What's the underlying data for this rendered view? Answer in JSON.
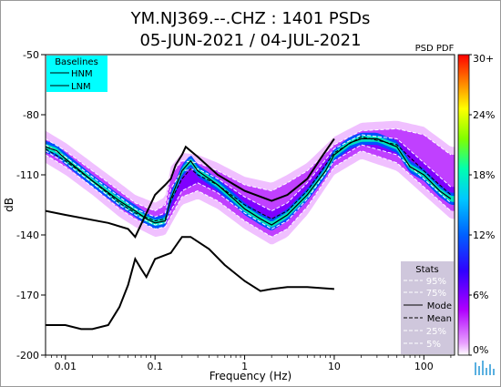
{
  "title": {
    "line1": "YM.NJ369.--.CHZ : 1401 PSDs",
    "line2": "05-JUN-2021 / 04-JUL-2021"
  },
  "chart_data": {
    "type": "heatmap",
    "xlabel": "Frequency (Hz)",
    "ylabel": "dB",
    "x_scale": "log",
    "xlim": [
      0.006,
      220
    ],
    "ylim": [
      -200,
      -50
    ],
    "x_ticks": [
      {
        "value": 0.01,
        "label": "0.01"
      },
      {
        "value": 0.1,
        "label": "0.1"
      },
      {
        "value": 1,
        "label": "1"
      },
      {
        "value": 10,
        "label": "10"
      },
      {
        "value": 100,
        "label": "100"
      }
    ],
    "y_ticks": [
      {
        "value": -50,
        "label": "-50"
      },
      {
        "value": -80,
        "label": "-80"
      },
      {
        "value": -110,
        "label": "-110"
      },
      {
        "value": -140,
        "label": "-140"
      },
      {
        "value": -170,
        "label": "-170"
      },
      {
        "value": -200,
        "label": "-200"
      }
    ],
    "colorbar": {
      "title": "PSD PDF",
      "range": [
        0,
        30
      ],
      "tick_labels": [
        "30+",
        "24%",
        "18%",
        "12%",
        "6%",
        "0%"
      ],
      "tick_values": [
        30,
        24,
        18,
        12,
        6,
        0
      ]
    },
    "baselines_legend": {
      "title": "Baselines",
      "entries": [
        "HNM",
        "LNM"
      ],
      "color": "#00ffff"
    },
    "stats_legend": {
      "title": "Stats",
      "entries": [
        "95%",
        "75%",
        "Mode",
        "Mean",
        "25%",
        "5%"
      ]
    },
    "series": [
      {
        "name": "HNM",
        "x": [
          0.006,
          0.01,
          0.03,
          0.05,
          0.06,
          0.1,
          0.13,
          0.15,
          0.17,
          0.2,
          0.22,
          0.3,
          0.5,
          1,
          2,
          3,
          5,
          7,
          10
        ],
        "y": [
          -128,
          -130,
          -134,
          -137,
          -141,
          -120,
          -115,
          -112,
          -105,
          -100,
          -96,
          -101,
          -110,
          -118,
          -123,
          -120,
          -112,
          -102,
          -92
        ]
      },
      {
        "name": "LNM",
        "x": [
          0.006,
          0.01,
          0.015,
          0.02,
          0.03,
          0.04,
          0.05,
          0.06,
          0.07,
          0.08,
          0.1,
          0.15,
          0.2,
          0.25,
          0.4,
          0.6,
          1,
          1.5,
          2,
          3,
          5,
          10
        ],
        "y": [
          -185,
          -185,
          -187,
          -187,
          -185,
          -176,
          -165,
          -152,
          -157,
          -161,
          -152,
          -149,
          -141,
          -141,
          -147,
          -155,
          -163,
          -168,
          -167,
          -166,
          -166,
          -167
        ]
      },
      {
        "name": "Mode",
        "x": [
          0.006,
          0.008,
          0.01,
          0.02,
          0.04,
          0.06,
          0.08,
          0.1,
          0.13,
          0.15,
          0.2,
          0.25,
          0.3,
          0.5,
          0.8,
          1,
          1.5,
          2,
          3,
          5,
          8,
          10,
          15,
          20,
          30,
          50,
          70,
          100,
          150,
          200
        ],
        "y": [
          -96,
          -98,
          -102,
          -113,
          -123,
          -128,
          -132,
          -134,
          -133,
          -122,
          -108,
          -103,
          -108,
          -115,
          -123,
          -127,
          -132,
          -135,
          -130,
          -120,
          -108,
          -100,
          -94,
          -92,
          -92,
          -96,
          -106,
          -110,
          -118,
          -122
        ]
      },
      {
        "name": "Mean",
        "x": [
          0.006,
          0.01,
          0.02,
          0.04,
          0.06,
          0.1,
          0.13,
          0.15,
          0.2,
          0.25,
          0.3,
          0.5,
          1,
          2,
          3,
          5,
          10,
          20,
          50,
          100,
          200
        ],
        "y": [
          -97,
          -103,
          -113,
          -124,
          -129,
          -133,
          -132,
          -123,
          -112,
          -107,
          -110,
          -115,
          -125,
          -132,
          -128,
          -118,
          -99,
          -91,
          -95,
          -108,
          -120
        ]
      },
      {
        "name": "95%",
        "x": [
          0.006,
          0.01,
          0.02,
          0.04,
          0.06,
          0.1,
          0.13,
          0.15,
          0.2,
          0.3,
          0.5,
          1,
          2,
          3,
          5,
          10,
          20,
          50,
          100,
          200
        ],
        "y": [
          -92,
          -98,
          -108,
          -118,
          -124,
          -128,
          -125,
          -110,
          -103,
          -104,
          -108,
          -115,
          -118,
          -114,
          -108,
          -95,
          -88,
          -87,
          -90,
          -100
        ]
      },
      {
        "name": "75%",
        "x": [
          0.006,
          0.01,
          0.02,
          0.04,
          0.06,
          0.1,
          0.13,
          0.15,
          0.2,
          0.3,
          0.5,
          1,
          2,
          3,
          5,
          10,
          20,
          50,
          100,
          200
        ],
        "y": [
          -95,
          -101,
          -111,
          -121,
          -127,
          -131,
          -129,
          -117,
          -108,
          -107,
          -112,
          -121,
          -128,
          -124,
          -114,
          -97,
          -90,
          -92,
          -104,
          -116
        ]
      },
      {
        "name": "25%",
        "x": [
          0.006,
          0.01,
          0.02,
          0.04,
          0.06,
          0.1,
          0.13,
          0.15,
          0.2,
          0.3,
          0.5,
          1,
          2,
          3,
          5,
          10,
          20,
          50,
          100,
          200
        ],
        "y": [
          -98,
          -104,
          -114,
          -125,
          -130,
          -135,
          -134,
          -128,
          -118,
          -114,
          -119,
          -129,
          -137,
          -133,
          -122,
          -103,
          -95,
          -100,
          -112,
          -124
        ]
      },
      {
        "name": "5%",
        "x": [
          0.006,
          0.01,
          0.02,
          0.04,
          0.06,
          0.1,
          0.13,
          0.15,
          0.2,
          0.3,
          0.5,
          1,
          2,
          3,
          5,
          10,
          20,
          50,
          100,
          200
        ],
        "y": [
          -100,
          -106,
          -116,
          -127,
          -132,
          -137,
          -136,
          -131,
          -121,
          -118,
          -123,
          -133,
          -141,
          -137,
          -126,
          -106,
          -98,
          -104,
          -116,
          -128
        ]
      }
    ]
  }
}
